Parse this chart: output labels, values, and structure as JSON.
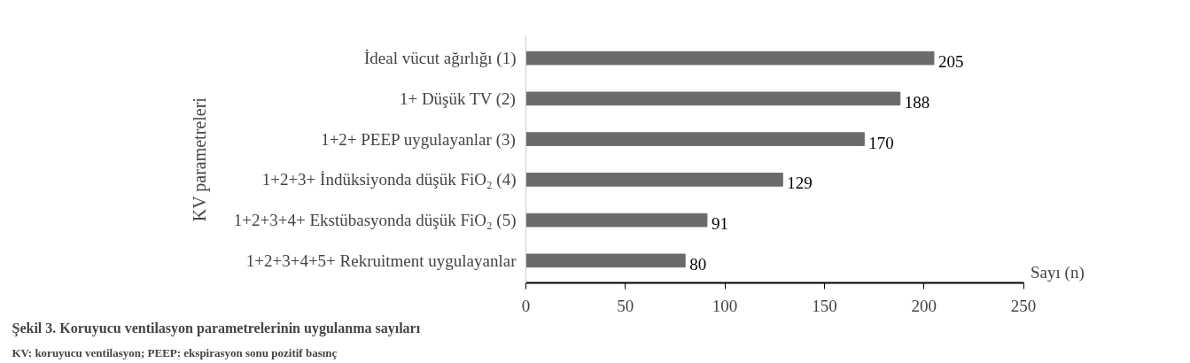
{
  "chart_data": {
    "type": "bar",
    "orientation": "horizontal",
    "title": "Şekil 3. Koruyucu ventilasyon parametrelerinin uygulanma sayıları",
    "categories": [
      "İdeal vücut ağırlığı (1)",
      "1+ Düşük TV (2)",
      "1+2+ PEEP uygulayanlar (3)",
      "1+2+3+ İndüksiyonda düşük FiO₂ (4)",
      "1+2+3+4+ Ekstübasyonda düşük FiO₂ (5)",
      "1+2+3+4+5+ Rekruitment uygulayanlar"
    ],
    "values": [
      205,
      188,
      170,
      129,
      91,
      80
    ],
    "color": "#6b6b6b",
    "data_labels": true,
    "xlim": [
      0,
      250
    ],
    "xticks": [
      0,
      50,
      100,
      150,
      200,
      250
    ],
    "xlabel": "Sayı (n)",
    "ylabel": "KV parametreleri",
    "grid": false,
    "annotations": [
      "KV: koruyucu ventilasyon; PEEP: ekspirasyon sonu pozitif basınç"
    ]
  }
}
